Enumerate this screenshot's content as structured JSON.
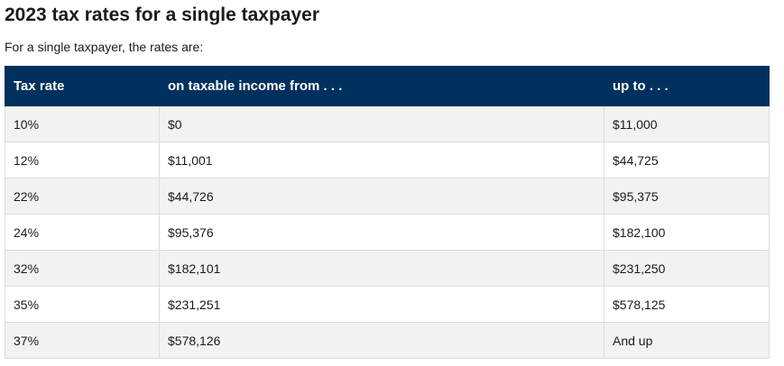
{
  "heading": "2023 tax rates for a single taxpayer",
  "intro": "For a single taxpayer, the rates are:",
  "table": {
    "headers": [
      "Tax rate",
      "on taxable income from . . .",
      "up to . . ."
    ],
    "rows": [
      [
        "10%",
        "$0",
        "$11,000"
      ],
      [
        "12%",
        "$11,001",
        "$44,725"
      ],
      [
        "22%",
        "$44,726",
        "$95,375"
      ],
      [
        "24%",
        "$95,376",
        "$182,100"
      ],
      [
        "32%",
        "$182,101",
        "$231,250"
      ],
      [
        "35%",
        "$231,251",
        "$578,125"
      ],
      [
        "37%",
        "$578,126",
        "And up"
      ]
    ]
  },
  "colors": {
    "header_bg": "#00305d",
    "header_text": "#ffffff",
    "row_alt_bg": "#f2f2f2",
    "border": "#dcdcdc"
  }
}
